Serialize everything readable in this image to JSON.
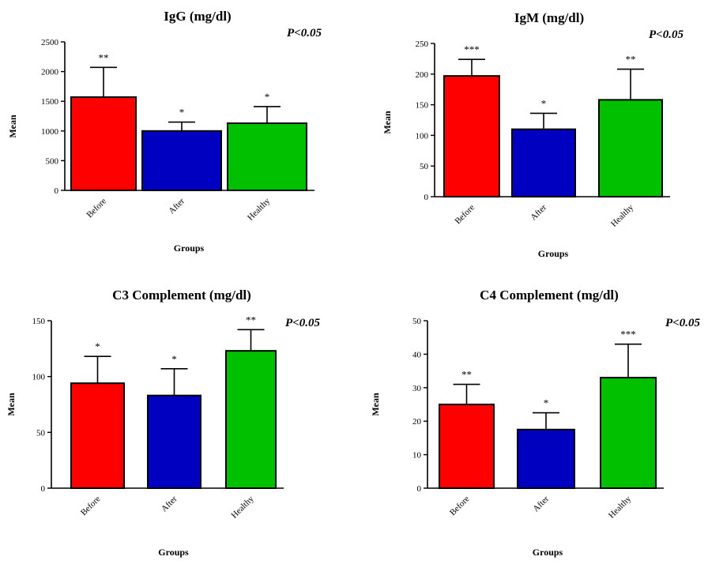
{
  "chart_data": [
    {
      "type": "bar",
      "title": "IgG (mg/dl)",
      "annotation": "P<0.05",
      "xlabel": "Groups",
      "ylabel": "Mean",
      "categories": [
        "Before",
        "After",
        "Healthy"
      ],
      "values": [
        1570,
        1000,
        1130
      ],
      "error": [
        500,
        150,
        280
      ],
      "significance": [
        "**",
        "*",
        "*"
      ],
      "bar_colors": [
        "#ff0000",
        "#0000c0",
        "#00c000"
      ],
      "ylim": [
        0,
        2500
      ],
      "yticks": [
        0,
        500,
        1000,
        1500,
        2000,
        2500
      ],
      "grid": false
    },
    {
      "type": "bar",
      "title": "IgM (mg/dl)",
      "annotation": "P<0.05",
      "xlabel": "Groups",
      "ylabel": "Mean",
      "categories": [
        "Before",
        "After",
        "Healthy"
      ],
      "values": [
        197,
        110,
        158
      ],
      "error": [
        27,
        26,
        50
      ],
      "significance": [
        "***",
        "*",
        "**"
      ],
      "bar_colors": [
        "#ff0000",
        "#0000c0",
        "#00c000"
      ],
      "ylim": [
        0,
        250
      ],
      "yticks": [
        0,
        50,
        100,
        150,
        200,
        250
      ],
      "grid": false
    },
    {
      "type": "bar",
      "title": "C3 Complement (mg/dl)",
      "annotation": "P<0.05",
      "xlabel": "Groups",
      "ylabel": "Mean",
      "categories": [
        "Before",
        "After",
        "Healthy"
      ],
      "values": [
        94,
        83,
        123
      ],
      "error": [
        24,
        24,
        19
      ],
      "significance": [
        "*",
        "*",
        "**"
      ],
      "bar_colors": [
        "#ff0000",
        "#0000c0",
        "#00c000"
      ],
      "ylim": [
        0,
        150
      ],
      "yticks": [
        0,
        50,
        100,
        150
      ],
      "grid": false
    },
    {
      "type": "bar",
      "title": "C4 Complement (mg/dl)",
      "annotation": "P<0.05",
      "xlabel": "Groups",
      "ylabel": "Mean",
      "categories": [
        "Before",
        "After",
        "Healthy"
      ],
      "values": [
        25,
        17.5,
        33
      ],
      "error": [
        6,
        5,
        10
      ],
      "significance": [
        "**",
        "*",
        "***"
      ],
      "bar_colors": [
        "#ff0000",
        "#0000c0",
        "#00c000"
      ],
      "ylim": [
        0,
        50
      ],
      "yticks": [
        0,
        10,
        20,
        30,
        40,
        50
      ],
      "grid": false
    }
  ]
}
